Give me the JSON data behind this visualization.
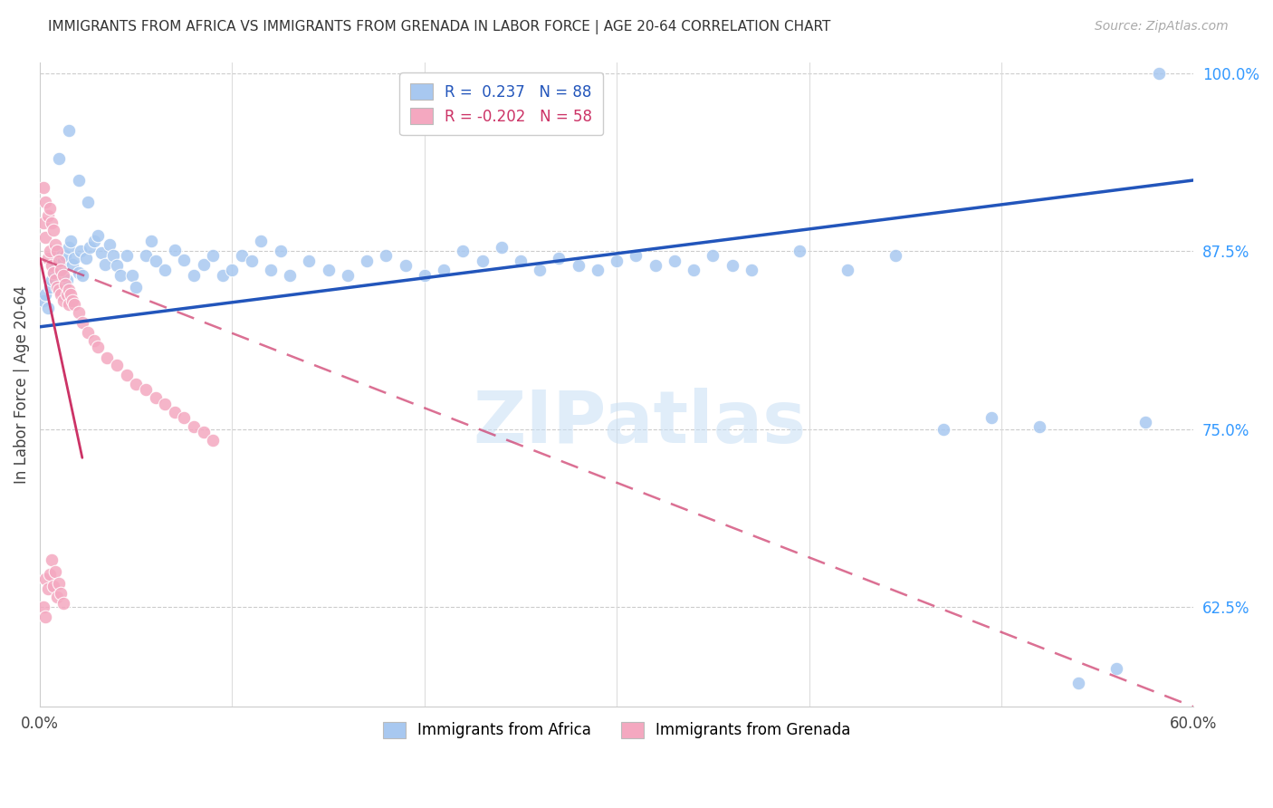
{
  "title": "IMMIGRANTS FROM AFRICA VS IMMIGRANTS FROM GRENADA IN LABOR FORCE | AGE 20-64 CORRELATION CHART",
  "source": "Source: ZipAtlas.com",
  "ylabel": "In Labor Force | Age 20-64",
  "xlim": [
    0.0,
    0.6
  ],
  "ylim": [
    0.555,
    1.008
  ],
  "yticks_right": [
    0.625,
    0.75,
    0.875,
    1.0
  ],
  "ytick_right_labels": [
    "62.5%",
    "75.0%",
    "87.5%",
    "100.0%"
  ],
  "legend_blue_label": "R =  0.237   N = 88",
  "legend_pink_label": "R = -0.202   N = 58",
  "legend_africa": "Immigrants from Africa",
  "legend_grenada": "Immigrants from Grenada",
  "blue_color": "#A8C8F0",
  "pink_color": "#F4A8C0",
  "blue_line_color": "#2255BB",
  "pink_line_color": "#CC3366",
  "watermark": "ZIPatlas",
  "africa_x": [
    0.002,
    0.003,
    0.004,
    0.005,
    0.006,
    0.007,
    0.008,
    0.009,
    0.01,
    0.011,
    0.012,
    0.013,
    0.014,
    0.015,
    0.016,
    0.017,
    0.018,
    0.02,
    0.021,
    0.022,
    0.024,
    0.026,
    0.028,
    0.03,
    0.032,
    0.034,
    0.036,
    0.038,
    0.04,
    0.042,
    0.045,
    0.048,
    0.05,
    0.055,
    0.058,
    0.06,
    0.065,
    0.07,
    0.075,
    0.08,
    0.085,
    0.09,
    0.095,
    0.1,
    0.105,
    0.11,
    0.115,
    0.12,
    0.125,
    0.13,
    0.14,
    0.15,
    0.16,
    0.17,
    0.18,
    0.19,
    0.2,
    0.21,
    0.22,
    0.23,
    0.24,
    0.25,
    0.26,
    0.27,
    0.28,
    0.29,
    0.3,
    0.31,
    0.32,
    0.33,
    0.34,
    0.35,
    0.36,
    0.37,
    0.395,
    0.42,
    0.445,
    0.47,
    0.495,
    0.52,
    0.54,
    0.56,
    0.575,
    0.01,
    0.015,
    0.02,
    0.025,
    0.582
  ],
  "africa_y": [
    0.84,
    0.845,
    0.835,
    0.85,
    0.855,
    0.86,
    0.865,
    0.87,
    0.875,
    0.862,
    0.868,
    0.872,
    0.855,
    0.878,
    0.882,
    0.866,
    0.87,
    0.86,
    0.875,
    0.858,
    0.87,
    0.878,
    0.882,
    0.886,
    0.874,
    0.866,
    0.88,
    0.872,
    0.865,
    0.858,
    0.872,
    0.858,
    0.85,
    0.872,
    0.882,
    0.868,
    0.862,
    0.876,
    0.869,
    0.858,
    0.866,
    0.872,
    0.858,
    0.862,
    0.872,
    0.868,
    0.882,
    0.862,
    0.875,
    0.858,
    0.868,
    0.862,
    0.858,
    0.868,
    0.872,
    0.865,
    0.858,
    0.862,
    0.875,
    0.868,
    0.878,
    0.868,
    0.862,
    0.87,
    0.865,
    0.862,
    0.868,
    0.872,
    0.865,
    0.868,
    0.862,
    0.872,
    0.865,
    0.862,
    0.875,
    0.862,
    0.872,
    0.75,
    0.758,
    0.752,
    0.572,
    0.582,
    0.755,
    0.94,
    0.96,
    0.925,
    0.91,
    1.0
  ],
  "grenada_x": [
    0.002,
    0.002,
    0.003,
    0.003,
    0.004,
    0.004,
    0.005,
    0.005,
    0.006,
    0.006,
    0.007,
    0.007,
    0.008,
    0.008,
    0.009,
    0.009,
    0.01,
    0.01,
    0.011,
    0.011,
    0.012,
    0.012,
    0.013,
    0.014,
    0.015,
    0.015,
    0.016,
    0.017,
    0.018,
    0.02,
    0.022,
    0.025,
    0.028,
    0.03,
    0.035,
    0.04,
    0.045,
    0.05,
    0.055,
    0.06,
    0.065,
    0.07,
    0.075,
    0.08,
    0.085,
    0.09,
    0.003,
    0.004,
    0.005,
    0.006,
    0.007,
    0.008,
    0.009,
    0.01,
    0.011,
    0.012,
    0.002,
    0.003
  ],
  "grenada_y": [
    0.92,
    0.895,
    0.91,
    0.885,
    0.9,
    0.87,
    0.905,
    0.875,
    0.895,
    0.865,
    0.89,
    0.86,
    0.88,
    0.855,
    0.875,
    0.85,
    0.868,
    0.848,
    0.862,
    0.845,
    0.858,
    0.84,
    0.852,
    0.845,
    0.848,
    0.838,
    0.845,
    0.84,
    0.838,
    0.832,
    0.825,
    0.818,
    0.812,
    0.808,
    0.8,
    0.795,
    0.788,
    0.782,
    0.778,
    0.772,
    0.768,
    0.762,
    0.758,
    0.752,
    0.748,
    0.742,
    0.645,
    0.638,
    0.648,
    0.658,
    0.64,
    0.65,
    0.632,
    0.642,
    0.635,
    0.628,
    0.625,
    0.618
  ],
  "trend_africa_x0": 0.0,
  "trend_africa_x1": 0.6,
  "trend_africa_y0": 0.822,
  "trend_africa_y1": 0.925,
  "trend_grenada_x0": 0.0,
  "trend_grenada_x1": 0.6,
  "trend_grenada_y0": 0.87,
  "trend_grenada_y1": 0.555
}
